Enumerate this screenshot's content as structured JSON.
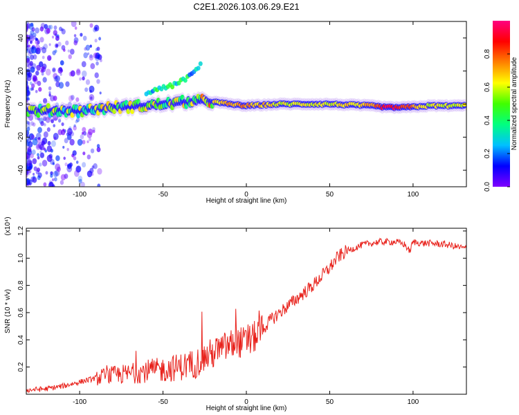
{
  "figure_title": "C2E1.2026.103.06.29.E21",
  "chart_data": [
    {
      "type": "heatmap",
      "title": "",
      "xlabel": "Height of straight line (km)",
      "ylabel": "Frequency (Hz)",
      "xlim": [
        -132,
        132
      ],
      "ylim": [
        -50,
        50
      ],
      "x_ticks": [
        -100,
        -50,
        0,
        50,
        100
      ],
      "y_ticks": [
        -40,
        -20,
        0,
        20,
        40
      ],
      "colorbar": {
        "label": "Normalized spectral amplitude",
        "range": [
          0,
          1
        ],
        "ticks": [
          0.0,
          0.2,
          0.4,
          0.6,
          0.8
        ],
        "colormap": "rainbow",
        "stops": [
          "#8000ff",
          "#0000ff",
          "#00c0ff",
          "#00ff80",
          "#40ff00",
          "#ffff00",
          "#ff8000",
          "#ff0000",
          "#ff0080"
        ]
      },
      "main_band": [
        {
          "x": -125,
          "f": -4,
          "a": 0.45
        },
        {
          "x": -100,
          "f": -4,
          "a": 0.45
        },
        {
          "x": -80,
          "f": -2,
          "a": 0.5
        },
        {
          "x": -60,
          "f": -1,
          "a": 0.5
        },
        {
          "x": -40,
          "f": 1,
          "a": 0.55
        },
        {
          "x": -25,
          "f": 2,
          "a": 0.6
        },
        {
          "x": -10,
          "f": 0,
          "a": 0.7
        },
        {
          "x": 0,
          "f": -1,
          "a": 0.75
        },
        {
          "x": 20,
          "f": 0,
          "a": 0.6
        },
        {
          "x": 50,
          "f": 0,
          "a": 0.6
        },
        {
          "x": 75,
          "f": -1,
          "a": 0.7
        },
        {
          "x": 85,
          "f": -2,
          "a": 0.95
        },
        {
          "x": 95,
          "f": -2,
          "a": 0.85
        },
        {
          "x": 110,
          "f": -1,
          "a": 0.6
        },
        {
          "x": 132,
          "f": -1,
          "a": 0.6
        }
      ],
      "upper_branch": [
        {
          "x": -60,
          "f": 7,
          "a": 0.3
        },
        {
          "x": -45,
          "f": 11,
          "a": 0.35
        },
        {
          "x": -35,
          "f": 16,
          "a": 0.3
        },
        {
          "x": -27,
          "f": 24,
          "a": 0.2
        }
      ]
    },
    {
      "type": "line",
      "title": "",
      "xlabel": "Height of straight line (km)",
      "ylabel": "SNR (10 * v/v)",
      "y_scale_label": "(x10⁴)",
      "xlim": [
        -132,
        132
      ],
      "ylim": [
        0.0,
        1.22
      ],
      "x_ticks": [
        -100,
        -50,
        0,
        50,
        100
      ],
      "y_ticks": [
        0.2,
        0.4,
        0.6,
        0.8,
        1.0,
        1.2
      ],
      "series": [
        {
          "color": "#e8201a",
          "x": [
            -132,
            -120,
            -110,
            -100,
            -90,
            -80,
            -70,
            -60,
            -50,
            -40,
            -30,
            -25,
            -20,
            -15,
            -10,
            -5,
            0,
            5,
            10,
            15,
            20,
            25,
            30,
            40,
            50,
            55,
            60,
            70,
            80,
            90,
            95,
            98,
            100,
            105,
            110,
            120,
            132
          ],
          "y": [
            0.03,
            0.04,
            0.06,
            0.09,
            0.12,
            0.14,
            0.15,
            0.17,
            0.18,
            0.2,
            0.23,
            0.27,
            0.3,
            0.33,
            0.36,
            0.38,
            0.38,
            0.42,
            0.48,
            0.55,
            0.6,
            0.65,
            0.7,
            0.8,
            0.93,
            1.01,
            1.05,
            1.1,
            1.12,
            1.12,
            1.1,
            1.05,
            1.12,
            1.11,
            1.11,
            1.1,
            1.07
          ]
        }
      ]
    }
  ]
}
